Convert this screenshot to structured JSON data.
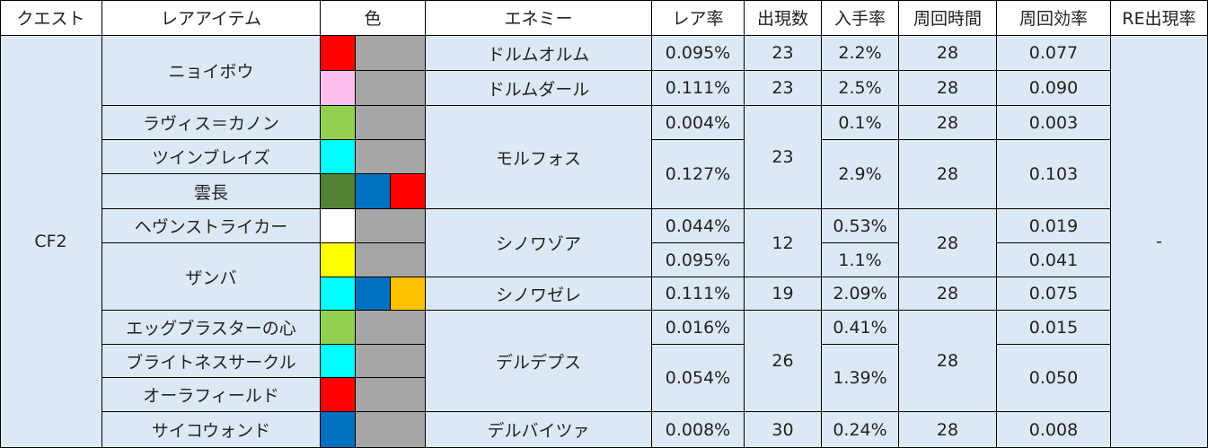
{
  "colors": {
    "cell_bg": "#dce9f5",
    "gray": "#a6a6a6",
    "red": "#ff0000",
    "pink": "#ffc0f0",
    "light_green": "#92d050",
    "cyan": "#00ffff",
    "dark_green": "#548235",
    "blue": "#0070c0",
    "white": "#ffffff",
    "yellow": "#ffff00",
    "orange": "#ffc000"
  },
  "headers": [
    "クエスト",
    "レアアイテム",
    "色",
    "エネミー",
    "レア率",
    "出現数",
    "入手率",
    "周回時間",
    "周回効率",
    "RE出現率"
  ],
  "quest": "CF2",
  "re_rate": "-",
  "items": [
    "ニョイボウ",
    "ラヴィス＝カノン",
    "ツインブレイズ",
    "雲長",
    "ヘヴンストライカー",
    "ザンバ",
    "エッグブラスターの心",
    "ブライトネスサークル",
    "オーラフィールド",
    "サイコウォンド"
  ],
  "enemies": [
    "ドルムオルム",
    "ドルムダール",
    "モルフォス",
    "シノワゾア",
    "シノワゼレ",
    "デルデプス",
    "デルバイツァ"
  ],
  "rare_rates": [
    "0.095%",
    "0.111%",
    "0.004%",
    "0.127%",
    "0.044%",
    "0.095%",
    "0.111%",
    "0.016%",
    "0.054%",
    "0.008%"
  ],
  "spawn_counts": [
    "23",
    "23",
    "23",
    "12",
    "19",
    "26",
    "30"
  ],
  "obtain_rates": [
    "2.2%",
    "2.5%",
    "0.1%",
    "2.9%",
    "0.53%",
    "1.1%",
    "2.09%",
    "0.41%",
    "1.39%",
    "0.24%"
  ],
  "loop_times": [
    "28",
    "28",
    "28",
    "28",
    "28",
    "28",
    "28",
    "28"
  ],
  "efficiency": [
    "0.077",
    "0.090",
    "0.003",
    "0.103",
    "0.019",
    "0.041",
    "0.075",
    "0.015",
    "0.050",
    "0.008"
  ]
}
